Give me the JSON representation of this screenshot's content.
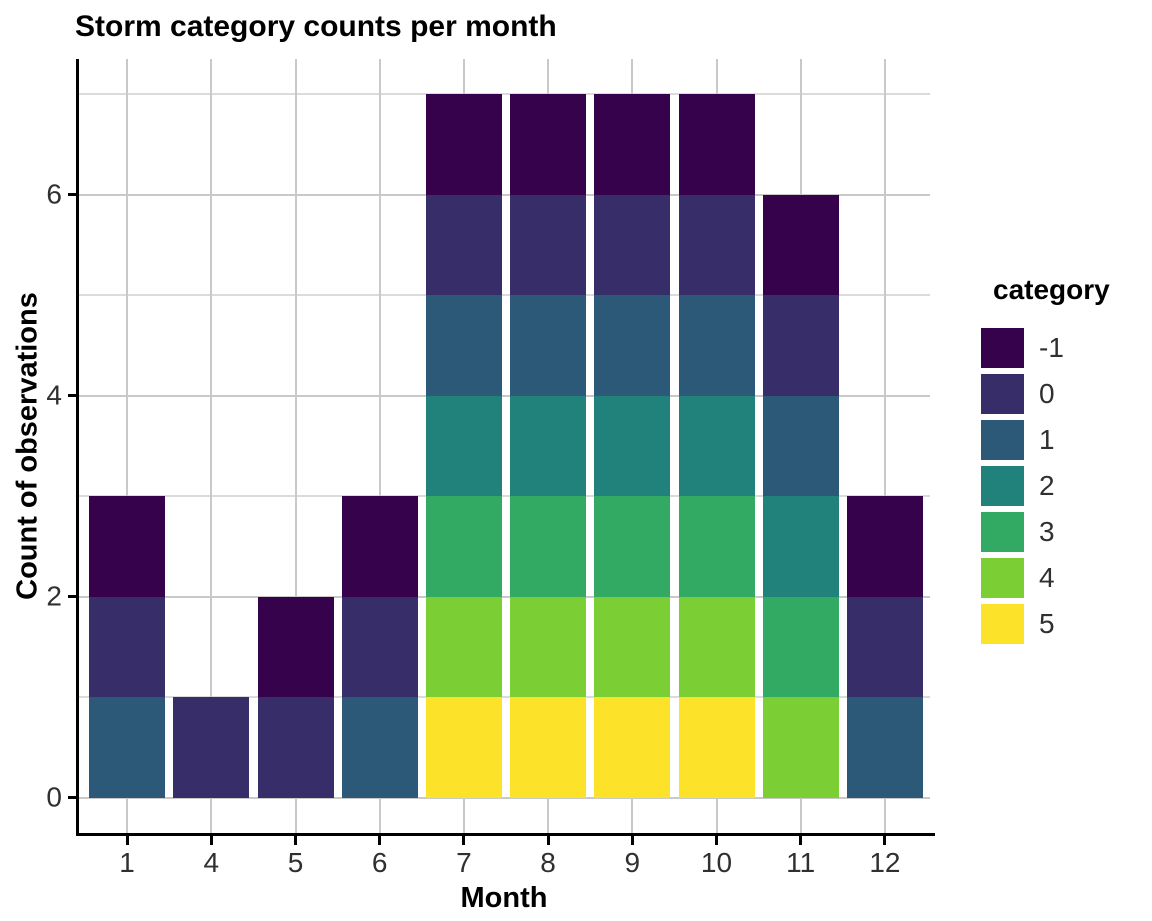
{
  "chart_data": {
    "type": "bar",
    "stacked": true,
    "title": "Storm category counts per month",
    "xlabel": "Month",
    "ylabel": "Count of observations",
    "legend_title": "category",
    "legend_position": "right",
    "background": "#ffffff",
    "grid": true,
    "categories": [
      "1",
      "4",
      "5",
      "6",
      "7",
      "8",
      "9",
      "10",
      "11",
      "12"
    ],
    "series": [
      {
        "name": "-1",
        "color": "#36024c",
        "values": [
          1,
          0,
          1,
          1,
          1,
          1,
          1,
          1,
          1,
          1
        ]
      },
      {
        "name": "0",
        "color": "#362d69",
        "values": [
          1,
          1,
          1,
          1,
          1,
          1,
          1,
          1,
          1,
          1
        ]
      },
      {
        "name": "1",
        "color": "#2c5978",
        "values": [
          1,
          0,
          0,
          1,
          1,
          1,
          1,
          1,
          1,
          1
        ]
      },
      {
        "name": "2",
        "color": "#21827c",
        "values": [
          0,
          0,
          0,
          0,
          1,
          1,
          1,
          1,
          1,
          0
        ]
      },
      {
        "name": "3",
        "color": "#33aa64",
        "values": [
          0,
          0,
          0,
          0,
          1,
          1,
          1,
          1,
          1,
          0
        ]
      },
      {
        "name": "4",
        "color": "#7bce33",
        "values": [
          0,
          0,
          0,
          0,
          1,
          1,
          1,
          1,
          1,
          0
        ]
      },
      {
        "name": "5",
        "color": "#fce329",
        "values": [
          0,
          0,
          0,
          0,
          1,
          1,
          1,
          1,
          0,
          0
        ]
      }
    ],
    "stack_order_bottom_to_top": [
      "5",
      "4",
      "3",
      "2",
      "1",
      "0",
      "-1"
    ],
    "bar_totals": [
      3,
      1,
      2,
      3,
      7,
      7,
      7,
      7,
      6,
      3
    ],
    "yticks": [
      "0",
      "2",
      "4",
      "6"
    ],
    "ytick_values": [
      0,
      2,
      4,
      6
    ],
    "ylim": [
      0,
      7
    ],
    "gridline_values_h": [
      0,
      1,
      2,
      3,
      4,
      5,
      6,
      7
    ]
  }
}
